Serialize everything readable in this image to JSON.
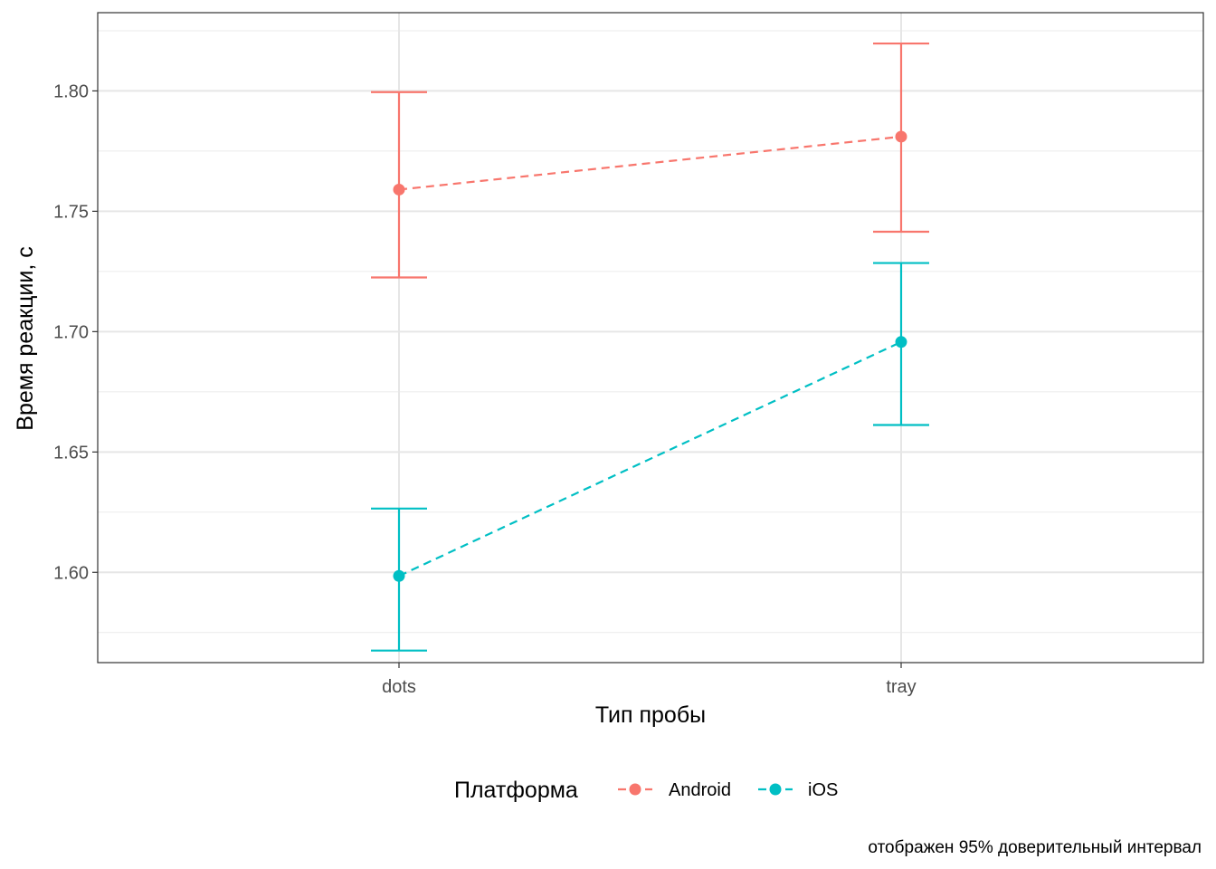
{
  "chart_data": {
    "type": "line",
    "x_categories": [
      "dots",
      "tray"
    ],
    "xlabel": "Тип пробы",
    "ylabel": "Время реакции, с",
    "ylim": [
      1.5625,
      1.8325
    ],
    "y_ticks": [
      1.6,
      1.65,
      1.7,
      1.75,
      1.8
    ],
    "y_tick_labels": [
      "1.60",
      "1.65",
      "1.70",
      "1.75",
      "1.80"
    ],
    "y_minor_ticks": [
      1.575,
      1.625,
      1.675,
      1.725,
      1.775,
      1.825
    ],
    "grid": true,
    "line_style": "dashed",
    "error_bars": true,
    "legend": {
      "title": "Платформа",
      "position": "bottom"
    },
    "caption": "отображен 95% доверительный интервал",
    "series": [
      {
        "name": "Android",
        "color": "#F8766D",
        "x": [
          "dots",
          "tray"
        ],
        "y": [
          1.759,
          1.781
        ],
        "ci_low": [
          1.7225,
          1.7415
        ],
        "ci_high": [
          1.7995,
          1.8197
        ]
      },
      {
        "name": "iOS",
        "color": "#00BFC4",
        "x": [
          "dots",
          "tray"
        ],
        "y": [
          1.5985,
          1.6957
        ],
        "ci_low": [
          1.5675,
          1.6612
        ],
        "ci_high": [
          1.6265,
          1.7285
        ]
      }
    ]
  }
}
